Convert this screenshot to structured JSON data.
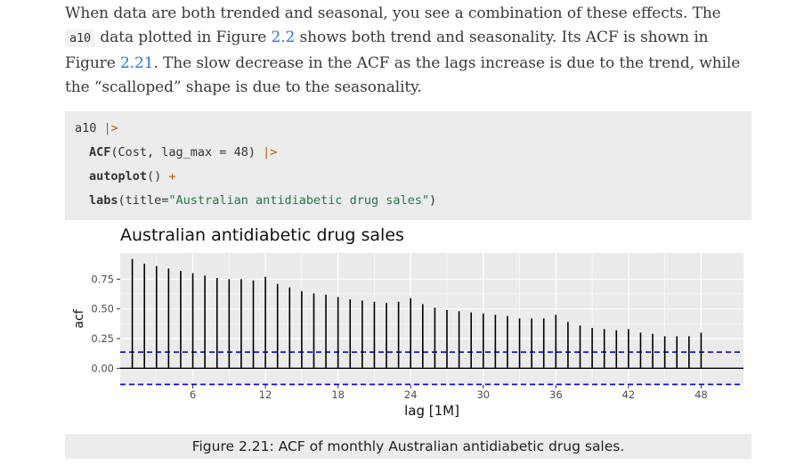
{
  "paragraph": {
    "t1": "When data are both trended and seasonal, you see a combination of these effects. The ",
    "code": "a10",
    "t2": " data plotted in Figure ",
    "link1": "2.2",
    "t3": " shows both trend and seasonality. Its ACF is shown in Figure ",
    "link2": "2.21",
    "t4": ". The slow decrease in the ACF as the lags increase is due to the trend, while the “scalloped” shape is due to the seasonality."
  },
  "code": {
    "l1_obj": "a10",
    "l1_op": "|>",
    "l2_fn": "ACF",
    "l2_args_a": "(Cost, lag_max = ",
    "l2_num": "48",
    "l2_args_b": ")",
    "l2_op": "|>",
    "l3_fn": "autoplot",
    "l3_args": "()",
    "l3_op": "+",
    "l4_fn": "labs",
    "l4_args_a": "(title=",
    "l4_str": "\"Australian antidiabetic drug sales\"",
    "l4_args_b": ")"
  },
  "chart_data": {
    "type": "bar",
    "title": "Australian antidiabetic drug sales",
    "xlabel": "lag [1M]",
    "ylabel": "acf",
    "x": [
      1,
      2,
      3,
      4,
      5,
      6,
      7,
      8,
      9,
      10,
      11,
      12,
      13,
      14,
      15,
      16,
      17,
      18,
      19,
      20,
      21,
      22,
      23,
      24,
      25,
      26,
      27,
      28,
      29,
      30,
      31,
      32,
      33,
      34,
      35,
      36,
      37,
      38,
      39,
      40,
      41,
      42,
      43,
      44,
      45,
      46,
      47,
      48
    ],
    "values": [
      0.92,
      0.88,
      0.86,
      0.84,
      0.82,
      0.8,
      0.78,
      0.76,
      0.75,
      0.75,
      0.74,
      0.77,
      0.71,
      0.68,
      0.65,
      0.63,
      0.62,
      0.6,
      0.58,
      0.57,
      0.56,
      0.55,
      0.56,
      0.59,
      0.54,
      0.51,
      0.49,
      0.48,
      0.47,
      0.46,
      0.45,
      0.44,
      0.42,
      0.42,
      0.42,
      0.45,
      0.39,
      0.36,
      0.34,
      0.33,
      0.32,
      0.33,
      0.3,
      0.29,
      0.27,
      0.27,
      0.27,
      0.3
    ],
    "yticks": [
      0.0,
      0.25,
      0.5,
      0.75
    ],
    "ytick_labels": [
      "0.00",
      "0.25",
      "0.50",
      "0.75"
    ],
    "xticks": [
      6,
      12,
      18,
      24,
      30,
      36,
      42,
      48
    ],
    "xtick_labels": [
      "6",
      "12",
      "18",
      "24",
      "30",
      "36",
      "42",
      "48"
    ],
    "xlim": [
      0,
      51.5
    ],
    "ylim": [
      -0.14,
      0.97
    ],
    "ci": 0.136,
    "colors": {
      "bars": "#000000",
      "ci": "#0000ff",
      "panel": "#ebebeb",
      "grid": "#ffffff"
    }
  },
  "caption": "Figure 2.21: ACF of monthly Australian antidiabetic drug sales."
}
